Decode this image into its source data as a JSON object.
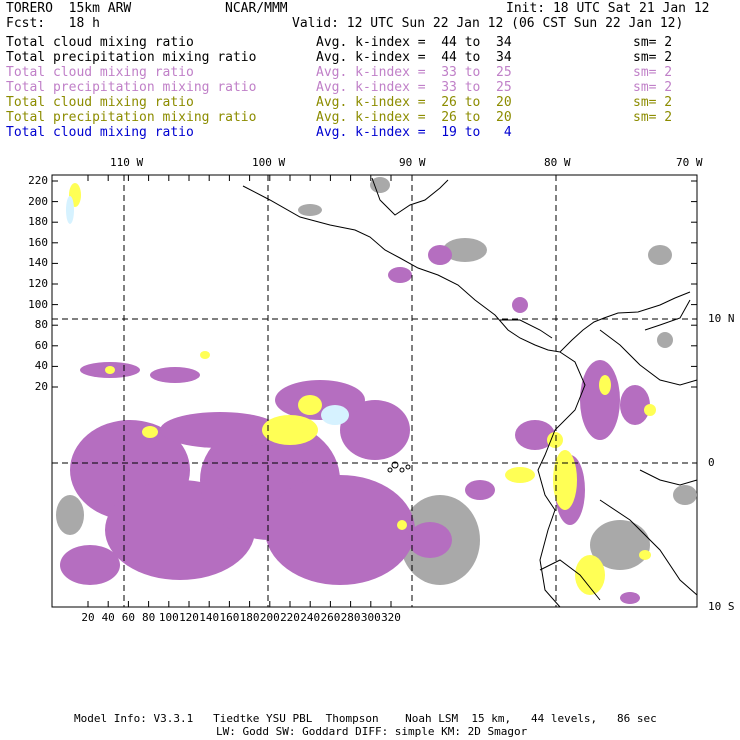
{
  "header": {
    "model": "TORERO  15km ARW",
    "org": "NCAR/MMM",
    "init": "Init: 18 UTC Sat 21 Jan 12",
    "fcst": "Fcst:   18 h",
    "valid": "Valid: 12 UTC Sun 22 Jan 12 (06 CST Sun 22 Jan 12)"
  },
  "legend": [
    {
      "field": "Total cloud mixing ratio",
      "stat": "Avg. k-index =  44 to  34",
      "sm": "sm= 2",
      "color": "#000000"
    },
    {
      "field": "Total precipitation mixing ratio",
      "stat": "Avg. k-index =  44 to  34",
      "sm": "sm= 2",
      "color": "#000000"
    },
    {
      "field": "Total cloud mixing ratio",
      "stat": "Avg. k-index =  33 to  25",
      "sm": "sm= 2",
      "color": "#c080c8"
    },
    {
      "field": "Total precipitation mixing ratio",
      "stat": "Avg. k-index =  33 to  25",
      "sm": "sm= 2",
      "color": "#c080c8"
    },
    {
      "field": "Total cloud mixing ratio",
      "stat": "Avg. k-index =  26 to  20",
      "sm": "sm= 2",
      "color": "#8c8c00"
    },
    {
      "field": "Total precipitation mixing ratio",
      "stat": "Avg. k-index =  26 to  20",
      "sm": "sm= 2",
      "color": "#8c8c00"
    },
    {
      "field": "Total cloud mixing ratio",
      "stat": "Avg. k-index =  19 to   4",
      "sm": "",
      "color": "#0000d0"
    }
  ],
  "top_lon_labels": [
    "110 W",
    "100 W",
    "90 W",
    "80 W",
    "70 W"
  ],
  "left_y_labels": [
    "220",
    "200",
    "180",
    "160",
    "140",
    "120",
    "100",
    "80",
    "60",
    "40",
    "20"
  ],
  "bottom_x_labels": [
    "20",
    "40",
    "60",
    "80",
    "100",
    "120",
    "140",
    "160",
    "180",
    "200",
    "220",
    "240",
    "260",
    "280",
    "300",
    "320"
  ],
  "right_lat_labels": [
    "10 N",
    "0",
    "10 S"
  ],
  "colors": {
    "purple": "#b56ec0",
    "gray": "#a9a9a9",
    "yellow": "#ffff55",
    "cyan": "#d6f2ff",
    "coast": "#000000"
  },
  "footer": {
    "line1": "Model Info: V3.3.1   Tiedtke YSU PBL  Thompson    Noah LSM  15 km,   44 levels,   86 sec",
    "line2": "LW: Godd SW: Goddard DIFF: simple KM: 2D Smagor"
  }
}
